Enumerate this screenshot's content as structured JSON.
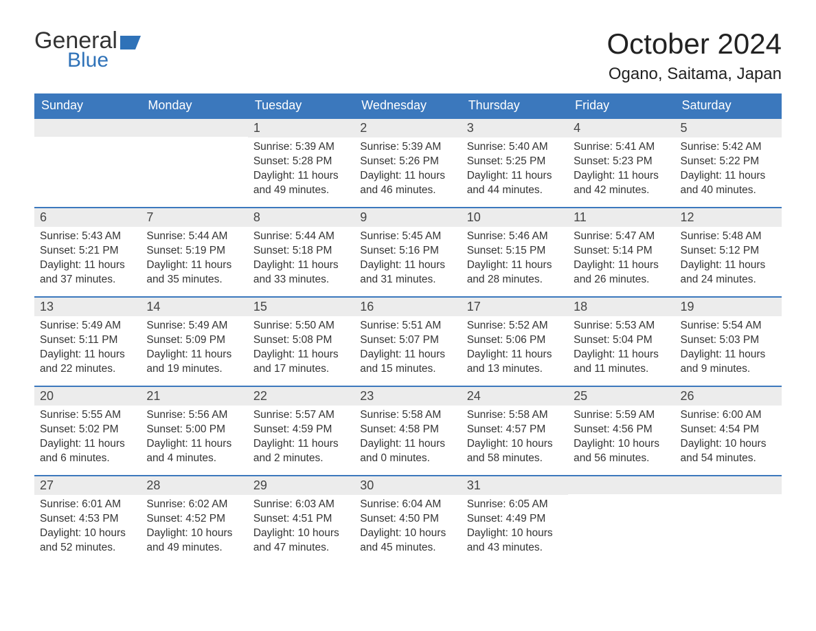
{
  "logo": {
    "general": "General",
    "blue": "Blue"
  },
  "title": "October 2024",
  "subtitle": "Ogano, Saitama, Japan",
  "weekdays": [
    "Sunday",
    "Monday",
    "Tuesday",
    "Wednesday",
    "Thursday",
    "Friday",
    "Saturday"
  ],
  "colors": {
    "header_bg": "#3b78bd",
    "header_text": "#ffffff",
    "daynum_bg": "#ececec",
    "week_border": "#3b78bd",
    "body_text": "#333333",
    "logo_blue": "#2f72b8",
    "background": "#ffffff"
  },
  "weeks": [
    [
      {
        "day": "",
        "sunrise": "",
        "sunset": "",
        "daylight1": "",
        "daylight2": ""
      },
      {
        "day": "",
        "sunrise": "",
        "sunset": "",
        "daylight1": "",
        "daylight2": ""
      },
      {
        "day": "1",
        "sunrise": "Sunrise: 5:39 AM",
        "sunset": "Sunset: 5:28 PM",
        "daylight1": "Daylight: 11 hours",
        "daylight2": "and 49 minutes."
      },
      {
        "day": "2",
        "sunrise": "Sunrise: 5:39 AM",
        "sunset": "Sunset: 5:26 PM",
        "daylight1": "Daylight: 11 hours",
        "daylight2": "and 46 minutes."
      },
      {
        "day": "3",
        "sunrise": "Sunrise: 5:40 AM",
        "sunset": "Sunset: 5:25 PM",
        "daylight1": "Daylight: 11 hours",
        "daylight2": "and 44 minutes."
      },
      {
        "day": "4",
        "sunrise": "Sunrise: 5:41 AM",
        "sunset": "Sunset: 5:23 PM",
        "daylight1": "Daylight: 11 hours",
        "daylight2": "and 42 minutes."
      },
      {
        "day": "5",
        "sunrise": "Sunrise: 5:42 AM",
        "sunset": "Sunset: 5:22 PM",
        "daylight1": "Daylight: 11 hours",
        "daylight2": "and 40 minutes."
      }
    ],
    [
      {
        "day": "6",
        "sunrise": "Sunrise: 5:43 AM",
        "sunset": "Sunset: 5:21 PM",
        "daylight1": "Daylight: 11 hours",
        "daylight2": "and 37 minutes."
      },
      {
        "day": "7",
        "sunrise": "Sunrise: 5:44 AM",
        "sunset": "Sunset: 5:19 PM",
        "daylight1": "Daylight: 11 hours",
        "daylight2": "and 35 minutes."
      },
      {
        "day": "8",
        "sunrise": "Sunrise: 5:44 AM",
        "sunset": "Sunset: 5:18 PM",
        "daylight1": "Daylight: 11 hours",
        "daylight2": "and 33 minutes."
      },
      {
        "day": "9",
        "sunrise": "Sunrise: 5:45 AM",
        "sunset": "Sunset: 5:16 PM",
        "daylight1": "Daylight: 11 hours",
        "daylight2": "and 31 minutes."
      },
      {
        "day": "10",
        "sunrise": "Sunrise: 5:46 AM",
        "sunset": "Sunset: 5:15 PM",
        "daylight1": "Daylight: 11 hours",
        "daylight2": "and 28 minutes."
      },
      {
        "day": "11",
        "sunrise": "Sunrise: 5:47 AM",
        "sunset": "Sunset: 5:14 PM",
        "daylight1": "Daylight: 11 hours",
        "daylight2": "and 26 minutes."
      },
      {
        "day": "12",
        "sunrise": "Sunrise: 5:48 AM",
        "sunset": "Sunset: 5:12 PM",
        "daylight1": "Daylight: 11 hours",
        "daylight2": "and 24 minutes."
      }
    ],
    [
      {
        "day": "13",
        "sunrise": "Sunrise: 5:49 AM",
        "sunset": "Sunset: 5:11 PM",
        "daylight1": "Daylight: 11 hours",
        "daylight2": "and 22 minutes."
      },
      {
        "day": "14",
        "sunrise": "Sunrise: 5:49 AM",
        "sunset": "Sunset: 5:09 PM",
        "daylight1": "Daylight: 11 hours",
        "daylight2": "and 19 minutes."
      },
      {
        "day": "15",
        "sunrise": "Sunrise: 5:50 AM",
        "sunset": "Sunset: 5:08 PM",
        "daylight1": "Daylight: 11 hours",
        "daylight2": "and 17 minutes."
      },
      {
        "day": "16",
        "sunrise": "Sunrise: 5:51 AM",
        "sunset": "Sunset: 5:07 PM",
        "daylight1": "Daylight: 11 hours",
        "daylight2": "and 15 minutes."
      },
      {
        "day": "17",
        "sunrise": "Sunrise: 5:52 AM",
        "sunset": "Sunset: 5:06 PM",
        "daylight1": "Daylight: 11 hours",
        "daylight2": "and 13 minutes."
      },
      {
        "day": "18",
        "sunrise": "Sunrise: 5:53 AM",
        "sunset": "Sunset: 5:04 PM",
        "daylight1": "Daylight: 11 hours",
        "daylight2": "and 11 minutes."
      },
      {
        "day": "19",
        "sunrise": "Sunrise: 5:54 AM",
        "sunset": "Sunset: 5:03 PM",
        "daylight1": "Daylight: 11 hours",
        "daylight2": "and 9 minutes."
      }
    ],
    [
      {
        "day": "20",
        "sunrise": "Sunrise: 5:55 AM",
        "sunset": "Sunset: 5:02 PM",
        "daylight1": "Daylight: 11 hours",
        "daylight2": "and 6 minutes."
      },
      {
        "day": "21",
        "sunrise": "Sunrise: 5:56 AM",
        "sunset": "Sunset: 5:00 PM",
        "daylight1": "Daylight: 11 hours",
        "daylight2": "and 4 minutes."
      },
      {
        "day": "22",
        "sunrise": "Sunrise: 5:57 AM",
        "sunset": "Sunset: 4:59 PM",
        "daylight1": "Daylight: 11 hours",
        "daylight2": "and 2 minutes."
      },
      {
        "day": "23",
        "sunrise": "Sunrise: 5:58 AM",
        "sunset": "Sunset: 4:58 PM",
        "daylight1": "Daylight: 11 hours",
        "daylight2": "and 0 minutes."
      },
      {
        "day": "24",
        "sunrise": "Sunrise: 5:58 AM",
        "sunset": "Sunset: 4:57 PM",
        "daylight1": "Daylight: 10 hours",
        "daylight2": "and 58 minutes."
      },
      {
        "day": "25",
        "sunrise": "Sunrise: 5:59 AM",
        "sunset": "Sunset: 4:56 PM",
        "daylight1": "Daylight: 10 hours",
        "daylight2": "and 56 minutes."
      },
      {
        "day": "26",
        "sunrise": "Sunrise: 6:00 AM",
        "sunset": "Sunset: 4:54 PM",
        "daylight1": "Daylight: 10 hours",
        "daylight2": "and 54 minutes."
      }
    ],
    [
      {
        "day": "27",
        "sunrise": "Sunrise: 6:01 AM",
        "sunset": "Sunset: 4:53 PM",
        "daylight1": "Daylight: 10 hours",
        "daylight2": "and 52 minutes."
      },
      {
        "day": "28",
        "sunrise": "Sunrise: 6:02 AM",
        "sunset": "Sunset: 4:52 PM",
        "daylight1": "Daylight: 10 hours",
        "daylight2": "and 49 minutes."
      },
      {
        "day": "29",
        "sunrise": "Sunrise: 6:03 AM",
        "sunset": "Sunset: 4:51 PM",
        "daylight1": "Daylight: 10 hours",
        "daylight2": "and 47 minutes."
      },
      {
        "day": "30",
        "sunrise": "Sunrise: 6:04 AM",
        "sunset": "Sunset: 4:50 PM",
        "daylight1": "Daylight: 10 hours",
        "daylight2": "and 45 minutes."
      },
      {
        "day": "31",
        "sunrise": "Sunrise: 6:05 AM",
        "sunset": "Sunset: 4:49 PM",
        "daylight1": "Daylight: 10 hours",
        "daylight2": "and 43 minutes."
      },
      {
        "day": "",
        "sunrise": "",
        "sunset": "",
        "daylight1": "",
        "daylight2": ""
      },
      {
        "day": "",
        "sunrise": "",
        "sunset": "",
        "daylight1": "",
        "daylight2": ""
      }
    ]
  ]
}
